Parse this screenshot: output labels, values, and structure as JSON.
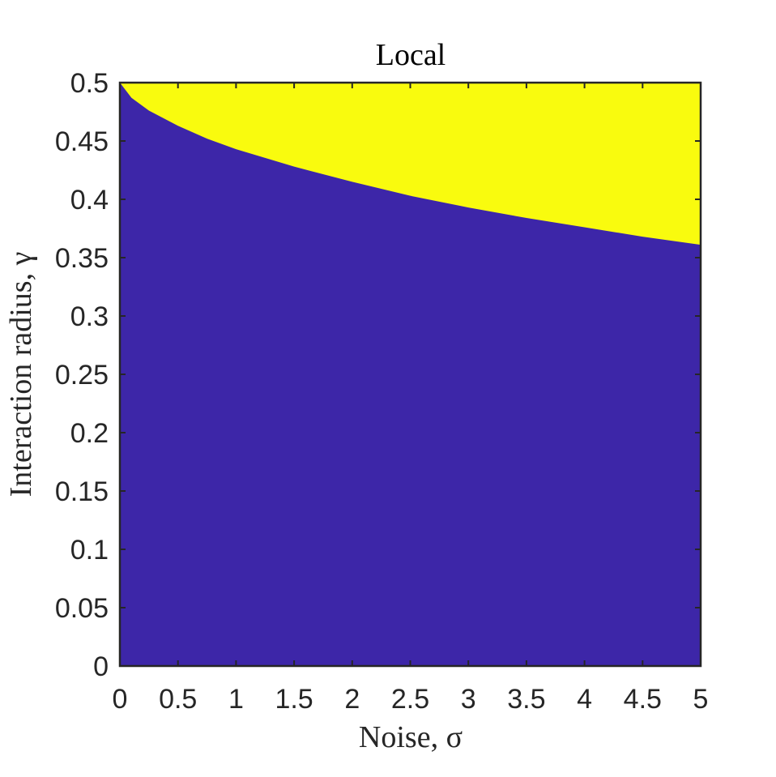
{
  "chart_data": {
    "type": "heatmap",
    "title": "Local",
    "xlabel": "Noise, σ",
    "ylabel": "Interaction radius, γ",
    "xlim": [
      0,
      5
    ],
    "ylim": [
      0,
      0.5
    ],
    "x_ticks": [
      "0",
      "0.5",
      "1",
      "1.5",
      "2",
      "2.5",
      "3",
      "3.5",
      "4",
      "4.5",
      "5"
    ],
    "y_ticks": [
      "0",
      "0.05",
      "0.1",
      "0.15",
      "0.2",
      "0.25",
      "0.3",
      "0.35",
      "0.4",
      "0.45",
      "0.5"
    ],
    "regions": [
      {
        "value": 0,
        "color": "#3d26a8",
        "position": "below boundary"
      },
      {
        "value": 1,
        "color": "#f9fb0e",
        "position": "above boundary"
      }
    ],
    "boundary": {
      "x": [
        0,
        0.1,
        0.25,
        0.5,
        0.75,
        1,
        1.5,
        2,
        2.5,
        3,
        3.5,
        4,
        4.5,
        5
      ],
      "y": [
        0.5,
        0.487,
        0.476,
        0.463,
        0.452,
        0.443,
        0.428,
        0.415,
        0.403,
        0.393,
        0.384,
        0.376,
        0.368,
        0.361
      ]
    }
  }
}
